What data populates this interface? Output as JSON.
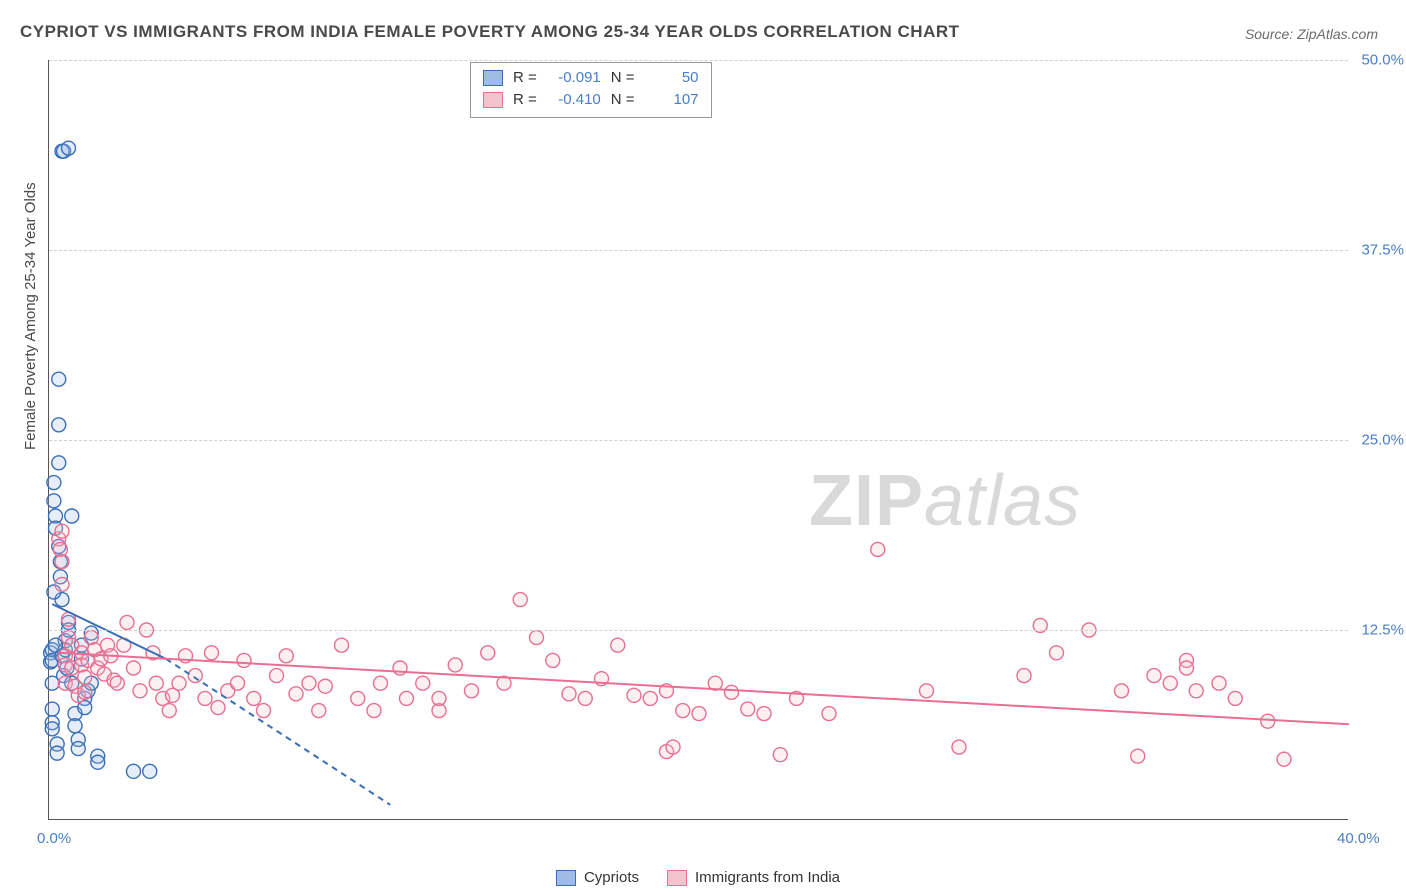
{
  "title": "CYPRIOT VS IMMIGRANTS FROM INDIA FEMALE POVERTY AMONG 25-34 YEAR OLDS CORRELATION CHART",
  "source": "Source: ZipAtlas.com",
  "watermark": {
    "bold": "ZIP",
    "rest": "atlas"
  },
  "y_axis_title": "Female Poverty Among 25-34 Year Olds",
  "chart": {
    "type": "scatter",
    "xlim": [
      0,
      40
    ],
    "ylim": [
      0,
      50
    ],
    "x_ticks": [
      0,
      40
    ],
    "x_tick_labels": [
      "0.0%",
      "40.0%"
    ],
    "y_ticks": [
      12.5,
      25,
      37.5,
      50
    ],
    "y_tick_labels": [
      "12.5%",
      "25.0%",
      "37.5%",
      "50.0%"
    ],
    "grid_y": [
      12.5,
      25,
      37.5,
      50
    ],
    "background_color": "#ffffff",
    "grid_color": "#d0d0d0",
    "axis_color": "#555555",
    "label_color": "#4a7ec9",
    "label_fontsize": 15,
    "title_fontsize": 17,
    "marker_radius": 7,
    "marker_opacity": 0.25,
    "stroke_width": 1.4,
    "series": [
      {
        "name": "Cypriots",
        "color_fill": "#9fbce6",
        "color_stroke": "#3a6fb7",
        "R": "-0.091",
        "N": "50",
        "trend": {
          "x1": 0.1,
          "y1": 14.2,
          "x2": 3.6,
          "y2": 10.6
        },
        "trend_dashed": {
          "x1": 3.6,
          "y1": 10.6,
          "x2": 10.5,
          "y2": 1.0
        },
        "points": [
          [
            0.05,
            11.0
          ],
          [
            0.05,
            10.4
          ],
          [
            0.1,
            11.2
          ],
          [
            0.1,
            10.5
          ],
          [
            0.1,
            9.0
          ],
          [
            0.1,
            7.3
          ],
          [
            0.1,
            6.4
          ],
          [
            0.1,
            6.0
          ],
          [
            0.15,
            22.2
          ],
          [
            0.15,
            21.0
          ],
          [
            0.2,
            20.0
          ],
          [
            0.2,
            19.2
          ],
          [
            0.25,
            5.0
          ],
          [
            0.25,
            4.4
          ],
          [
            0.3,
            26.0
          ],
          [
            0.3,
            23.5
          ],
          [
            0.3,
            29.0
          ],
          [
            0.3,
            18.0
          ],
          [
            0.35,
            17.0
          ],
          [
            0.35,
            16.0
          ],
          [
            0.4,
            14.5
          ],
          [
            0.4,
            10.8
          ],
          [
            0.45,
            9.5
          ],
          [
            0.15,
            15.0
          ],
          [
            0.5,
            11.8
          ],
          [
            0.5,
            11.2
          ],
          [
            0.55,
            10.0
          ],
          [
            0.6,
            13.0
          ],
          [
            0.6,
            12.5
          ],
          [
            0.7,
            20.0
          ],
          [
            0.7,
            9.0
          ],
          [
            0.8,
            7.0
          ],
          [
            0.8,
            6.2
          ],
          [
            0.9,
            5.3
          ],
          [
            0.9,
            4.7
          ],
          [
            1.0,
            11.5
          ],
          [
            1.0,
            10.6
          ],
          [
            1.1,
            8.0
          ],
          [
            1.1,
            7.4
          ],
          [
            1.2,
            8.5
          ],
          [
            1.3,
            12.3
          ],
          [
            1.3,
            9.0
          ],
          [
            1.5,
            4.2
          ],
          [
            1.5,
            3.8
          ],
          [
            0.4,
            44.0
          ],
          [
            0.45,
            44.0
          ],
          [
            0.6,
            44.2
          ],
          [
            3.1,
            3.2
          ],
          [
            2.6,
            3.2
          ],
          [
            0.2,
            11.5
          ]
        ]
      },
      {
        "name": "Immigrants from India",
        "color_fill": "#f5c3ce",
        "color_stroke": "#e86f91",
        "R": "-0.410",
        "N": "107",
        "trend": {
          "x1": 0.3,
          "y1": 11.0,
          "x2": 40.0,
          "y2": 6.3
        },
        "points": [
          [
            0.3,
            18.5
          ],
          [
            0.35,
            17.8
          ],
          [
            0.4,
            17.0
          ],
          [
            0.4,
            15.5
          ],
          [
            0.4,
            19.0
          ],
          [
            0.5,
            10.8
          ],
          [
            0.5,
            10.2
          ],
          [
            0.5,
            9.0
          ],
          [
            0.6,
            13.2
          ],
          [
            0.6,
            12.0
          ],
          [
            0.7,
            11.5
          ],
          [
            0.7,
            10.0
          ],
          [
            0.8,
            8.8
          ],
          [
            0.9,
            8.2
          ],
          [
            1.0,
            11.0
          ],
          [
            1.0,
            10.2
          ],
          [
            1.1,
            9.4
          ],
          [
            1.1,
            8.4
          ],
          [
            1.2,
            10.5
          ],
          [
            1.3,
            12.0
          ],
          [
            1.4,
            11.2
          ],
          [
            1.5,
            10.0
          ],
          [
            1.6,
            10.6
          ],
          [
            1.7,
            9.6
          ],
          [
            1.8,
            11.5
          ],
          [
            1.9,
            10.8
          ],
          [
            2.0,
            9.2
          ],
          [
            2.1,
            9.0
          ],
          [
            2.3,
            11.5
          ],
          [
            2.4,
            13.0
          ],
          [
            2.6,
            10.0
          ],
          [
            2.8,
            8.5
          ],
          [
            3.0,
            12.5
          ],
          [
            3.2,
            11.0
          ],
          [
            3.3,
            9.0
          ],
          [
            3.5,
            8.0
          ],
          [
            3.7,
            7.2
          ],
          [
            3.8,
            8.2
          ],
          [
            4.0,
            9.0
          ],
          [
            4.2,
            10.8
          ],
          [
            4.5,
            9.5
          ],
          [
            4.8,
            8.0
          ],
          [
            5.0,
            11.0
          ],
          [
            5.2,
            7.4
          ],
          [
            5.5,
            8.5
          ],
          [
            5.8,
            9.0
          ],
          [
            6.0,
            10.5
          ],
          [
            6.3,
            8.0
          ],
          [
            6.6,
            7.2
          ],
          [
            7.0,
            9.5
          ],
          [
            7.3,
            10.8
          ],
          [
            7.6,
            8.3
          ],
          [
            8.0,
            9.0
          ],
          [
            8.3,
            7.2
          ],
          [
            8.5,
            8.8
          ],
          [
            9.0,
            11.5
          ],
          [
            9.5,
            8.0
          ],
          [
            10.0,
            7.2
          ],
          [
            10.2,
            9.0
          ],
          [
            10.8,
            10.0
          ],
          [
            11.0,
            8.0
          ],
          [
            11.5,
            9.0
          ],
          [
            12.0,
            7.2
          ],
          [
            12.0,
            8.0
          ],
          [
            12.5,
            10.2
          ],
          [
            13.0,
            8.5
          ],
          [
            13.5,
            11.0
          ],
          [
            14.0,
            9.0
          ],
          [
            14.5,
            14.5
          ],
          [
            15.0,
            12.0
          ],
          [
            15.5,
            10.5
          ],
          [
            16.0,
            8.3
          ],
          [
            16.5,
            8.0
          ],
          [
            17.0,
            9.3
          ],
          [
            17.5,
            11.5
          ],
          [
            18.0,
            8.2
          ],
          [
            18.5,
            8.0
          ],
          [
            19.0,
            4.5
          ],
          [
            19.2,
            4.8
          ],
          [
            19.5,
            7.2
          ],
          [
            20.0,
            7.0
          ],
          [
            20.5,
            9.0
          ],
          [
            21.0,
            8.4
          ],
          [
            21.5,
            7.3
          ],
          [
            22.0,
            7.0
          ],
          [
            22.5,
            4.3
          ],
          [
            23.0,
            8.0
          ],
          [
            24.0,
            7.0
          ],
          [
            25.5,
            17.8
          ],
          [
            27.0,
            8.5
          ],
          [
            28.0,
            4.8
          ],
          [
            30.0,
            9.5
          ],
          [
            30.5,
            12.8
          ],
          [
            31.0,
            11.0
          ],
          [
            32.0,
            12.5
          ],
          [
            33.0,
            8.5
          ],
          [
            33.5,
            4.2
          ],
          [
            34.0,
            9.5
          ],
          [
            34.5,
            9.0
          ],
          [
            35.0,
            10.5
          ],
          [
            35.0,
            10.0
          ],
          [
            35.3,
            8.5
          ],
          [
            36.0,
            9.0
          ],
          [
            36.5,
            8.0
          ],
          [
            37.5,
            6.5
          ],
          [
            38.0,
            4.0
          ],
          [
            19.0,
            8.5
          ]
        ]
      }
    ]
  },
  "legend_top": {
    "R_label": "R =",
    "N_label": "N ="
  },
  "legend_bottom": [
    {
      "label": "Cypriots",
      "fill": "#9fbce6",
      "stroke": "#3a6fb7"
    },
    {
      "label": "Immigrants from India",
      "fill": "#f5c3ce",
      "stroke": "#e86f91"
    }
  ]
}
